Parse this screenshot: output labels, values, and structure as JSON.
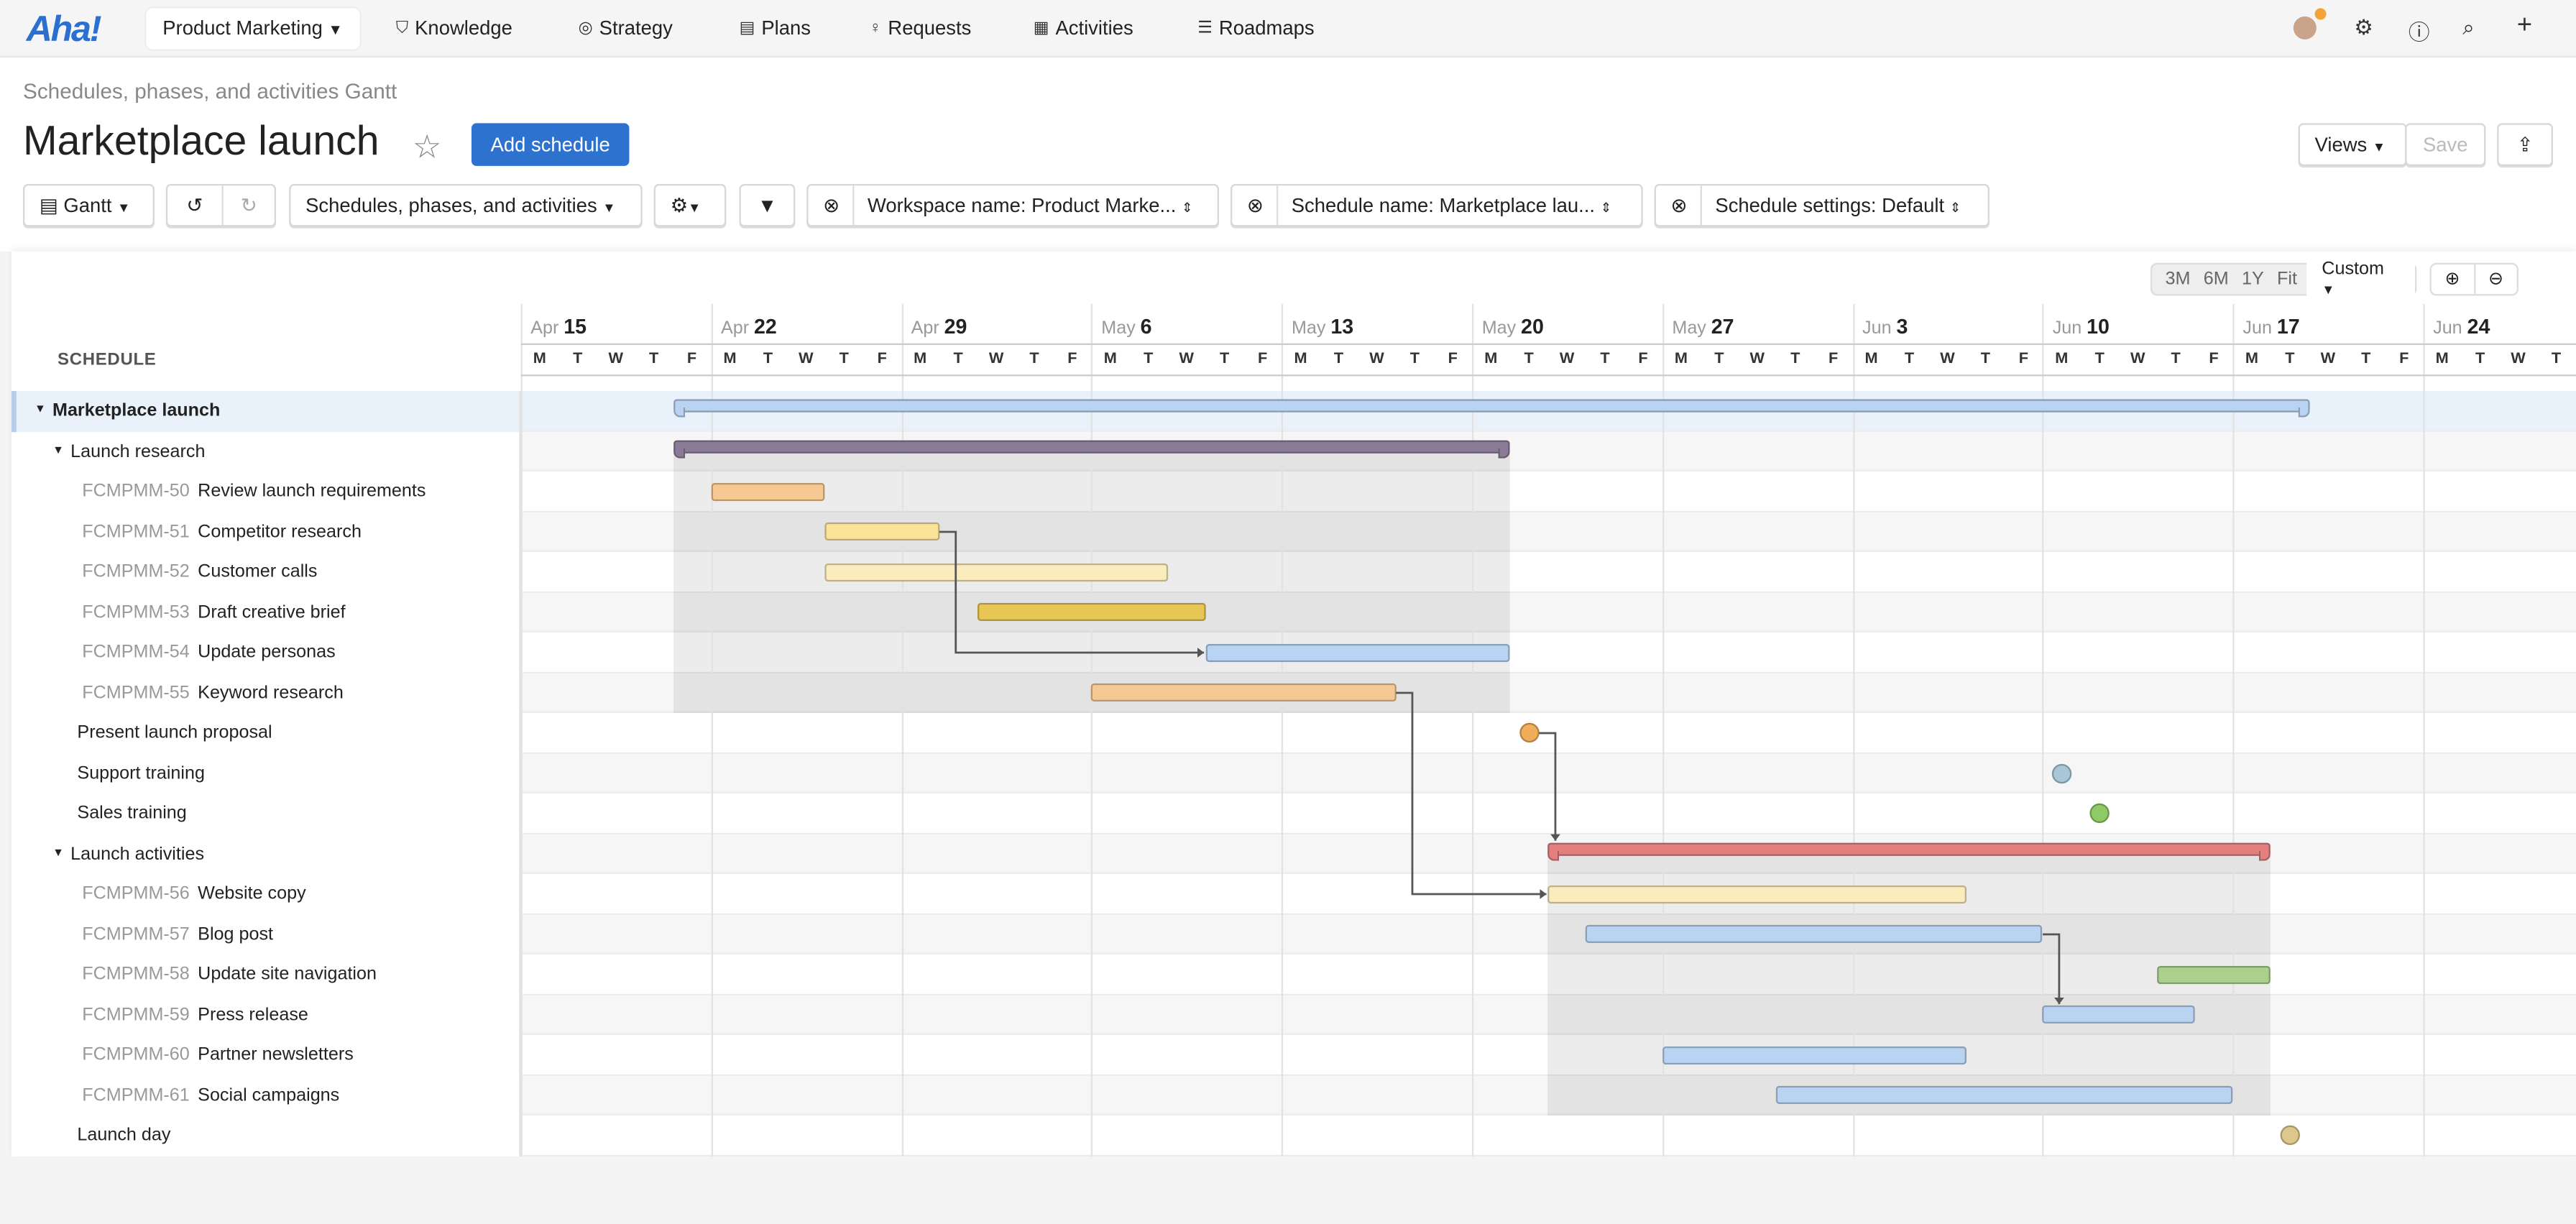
{
  "nav": {
    "logo": "Aha!",
    "workspace": "Product Marketing",
    "items": [
      {
        "label": "Knowledge",
        "icon": "knowledge-icon"
      },
      {
        "label": "Strategy",
        "icon": "target-icon"
      },
      {
        "label": "Plans",
        "icon": "calendar-icon"
      },
      {
        "label": "Requests",
        "icon": "lightbulb-icon"
      },
      {
        "label": "Activities",
        "icon": "grid-icon"
      },
      {
        "label": "Roadmaps",
        "icon": "roadmap-icon"
      }
    ],
    "notification_color": "#f2a33a"
  },
  "header": {
    "breadcrumb": "Schedules, phases, and activities Gantt",
    "title": "Marketplace launch",
    "add_button": "Add schedule",
    "views": "Views",
    "save": "Save"
  },
  "toolbar": {
    "view": "Gantt",
    "record_type": "Schedules, phases, and activities",
    "filters": [
      "Workspace name: Product Marke...",
      "Schedule name: Marketplace lau...",
      "Schedule settings: Default"
    ]
  },
  "timeline": {
    "zoom_options": [
      "3M",
      "6M",
      "1Y",
      "Fit"
    ],
    "zoom_selected": "Custom",
    "weeks": [
      {
        "month": "Apr",
        "day": "15"
      },
      {
        "month": "Apr",
        "day": "22"
      },
      {
        "month": "Apr",
        "day": "29"
      },
      {
        "month": "May",
        "day": "6"
      },
      {
        "month": "May",
        "day": "13"
      },
      {
        "month": "May",
        "day": "20"
      },
      {
        "month": "May",
        "day": "27"
      },
      {
        "month": "Jun",
        "day": "3"
      },
      {
        "month": "Jun",
        "day": "10"
      },
      {
        "month": "Jun",
        "day": "17"
      },
      {
        "month": "Jun",
        "day": "24"
      }
    ],
    "weekdays": [
      "M",
      "T",
      "W",
      "T",
      "F"
    ],
    "start_date": "2024-04-15"
  },
  "schedule_header": "SCHEDULE",
  "rows": [
    {
      "level": 0,
      "caret": true,
      "name": "Marketplace launch",
      "type": "summary",
      "start": "2024-04-19",
      "end": "2024-06-18",
      "color": "#b9d3f0"
    },
    {
      "level": 1,
      "caret": true,
      "name": "Launch research",
      "type": "summary",
      "start": "2024-04-19",
      "end": "2024-05-20",
      "color": "#8c7b96"
    },
    {
      "level": 2,
      "key": "FCMPMM-50",
      "name": "Review launch requirements",
      "type": "bar",
      "start": "2024-04-22",
      "end": "2024-04-24",
      "color": "#f6c893"
    },
    {
      "level": 2,
      "key": "FCMPMM-51",
      "name": "Competitor research",
      "type": "bar",
      "start": "2024-04-25",
      "end": "2024-04-29",
      "color": "#fbe39a"
    },
    {
      "level": 2,
      "key": "FCMPMM-52",
      "name": "Customer calls",
      "type": "bar",
      "start": "2024-04-25",
      "end": "2024-05-07",
      "color": "#fbecbd"
    },
    {
      "level": 2,
      "key": "FCMPMM-53",
      "name": "Draft creative brief",
      "type": "bar",
      "start": "2024-05-01",
      "end": "2024-05-08",
      "color": "#e8c653"
    },
    {
      "level": 2,
      "key": "FCMPMM-54",
      "name": "Update personas",
      "type": "bar",
      "start": "2024-05-09",
      "end": "2024-05-20",
      "color": "#b9d3f2"
    },
    {
      "level": 2,
      "key": "FCMPMM-55",
      "name": "Keyword research",
      "type": "bar",
      "start": "2024-05-06",
      "end": "2024-05-15",
      "color": "#f6c893"
    },
    {
      "level": 1,
      "name": "Present launch proposal",
      "type": "milestone",
      "start": "2024-05-21",
      "color": "#f0ad5a"
    },
    {
      "level": 1,
      "name": "Support training",
      "type": "milestone",
      "start": "2024-06-10",
      "color": "#a9c7d8"
    },
    {
      "level": 1,
      "name": "Sales training",
      "type": "milestone",
      "start": "2024-06-11",
      "color": "#8fca66"
    },
    {
      "level": 1,
      "caret": true,
      "name": "Launch activities",
      "type": "summary",
      "start": "2024-05-22",
      "end": "2024-06-17",
      "color": "#e27f7f"
    },
    {
      "level": 2,
      "key": "FCMPMM-56",
      "name": "Website copy",
      "type": "bar",
      "start": "2024-05-22",
      "end": "2024-06-05",
      "color": "#fbecbd"
    },
    {
      "level": 2,
      "key": "FCMPMM-57",
      "name": "Blog post",
      "type": "bar",
      "start": "2024-05-23",
      "end": "2024-06-07",
      "color": "#b9d3f2"
    },
    {
      "level": 2,
      "key": "FCMPMM-58",
      "name": "Update site navigation",
      "type": "bar",
      "start": "2024-06-13",
      "end": "2024-06-17",
      "color": "#abd08c"
    },
    {
      "level": 2,
      "key": "FCMPMM-59",
      "name": "Press release",
      "type": "bar",
      "start": "2024-06-10",
      "end": "2024-06-13",
      "color": "#b9d3f2"
    },
    {
      "level": 2,
      "key": "FCMPMM-60",
      "name": "Partner newsletters",
      "type": "bar",
      "start": "2024-05-27",
      "end": "2024-06-05",
      "color": "#b9d3f2"
    },
    {
      "level": 2,
      "key": "FCMPMM-61",
      "name": "Social campaigns",
      "type": "bar",
      "start": "2024-05-30",
      "end": "2024-06-14",
      "color": "#b9d3f2"
    },
    {
      "level": 1,
      "name": "Launch day",
      "type": "milestone",
      "start": "2024-06-18",
      "color": "#dcc88c"
    }
  ],
  "dependencies": [
    {
      "from": "FCMPMM-51",
      "to": "FCMPMM-54"
    },
    {
      "from": "FCMPMM-55",
      "to": "FCMPMM-56"
    },
    {
      "from": "Present launch proposal",
      "to": "Launch activities"
    },
    {
      "from": "FCMPMM-57",
      "to": "FCMPMM-59"
    }
  ]
}
